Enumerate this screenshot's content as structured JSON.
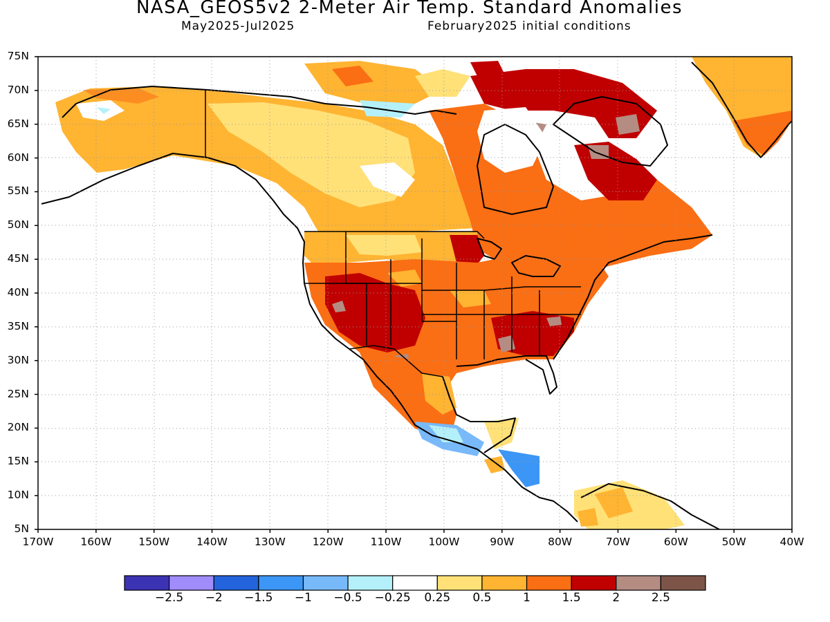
{
  "header": {
    "title": "NASA_GEOS5v2 2-Meter Air Temp. Standard Anomalies",
    "period": "May2025-Jul2025",
    "init": "February2025 initial conditions"
  },
  "axes": {
    "lat_labels": [
      "75N",
      "70N",
      "65N",
      "60N",
      "55N",
      "50N",
      "45N",
      "40N",
      "35N",
      "30N",
      "25N",
      "20N",
      "15N",
      "10N",
      "5N"
    ],
    "lon_labels": [
      "170W",
      "160W",
      "150W",
      "140W",
      "130W",
      "120W",
      "110W",
      "100W",
      "90W",
      "80W",
      "70W",
      "60W",
      "50W",
      "40W"
    ],
    "lat_range": [
      5,
      75
    ],
    "lon_range": [
      -170,
      -40
    ],
    "grid": "dotted"
  },
  "colorbar": {
    "colors": [
      "#3c32b4",
      "#a08cfa",
      "#2364dc",
      "#3c96f5",
      "#78b9fa",
      "#b4f0fa",
      "#ffffff",
      "#ffe178",
      "#ffb432",
      "#fa6e14",
      "#c00000",
      "#b48c82",
      "#7d5548"
    ],
    "labels": [
      "-2.5",
      "-2",
      "-1.5",
      "-1",
      "-0.5",
      "-0.25",
      "0.25",
      "0.5",
      "1",
      "1.5",
      "2",
      "2.5"
    ]
  },
  "map_data": {
    "variable": "2-meter air temperature standard anomaly",
    "regions": [
      {
        "region": "Alaska",
        "anomaly": 0.6
      },
      {
        "region": "Northwest Canada",
        "anomaly": 0.6
      },
      {
        "region": "Hudson Bay region",
        "anomaly": 1.3
      },
      {
        "region": "Eastern Canada",
        "anomaly": 1.2
      },
      {
        "region": "Baffin Island",
        "anomaly": 1.8
      },
      {
        "region": "Northern Quebec",
        "anomaly": 1.8
      },
      {
        "region": "Greenland",
        "anomaly": 0.8
      },
      {
        "region": "Southwest US",
        "anomaly": 1.8
      },
      {
        "region": "Central US",
        "anomaly": 1.2
      },
      {
        "region": "Southeast US",
        "anomaly": 1.8
      },
      {
        "region": "Northeast US",
        "anomaly": 1.3
      },
      {
        "region": "Northern Plains",
        "anomaly": 0.5
      },
      {
        "region": "Mexico",
        "anomaly": 1.2
      },
      {
        "region": "Southern Mexico",
        "anomaly": -0.5
      },
      {
        "region": "Central America",
        "anomaly": -0.8
      },
      {
        "region": "Northern South America",
        "anomaly": 0.6
      }
    ]
  }
}
